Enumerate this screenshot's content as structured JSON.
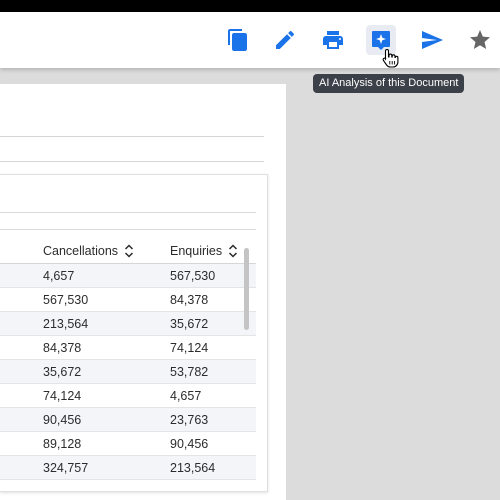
{
  "toolbar": {
    "buttons": [
      {
        "name": "copy-button",
        "icon": "copy-icon"
      },
      {
        "name": "edit-button",
        "icon": "pencil-icon"
      },
      {
        "name": "print-button",
        "icon": "printer-icon"
      },
      {
        "name": "ai-analysis-button",
        "icon": "sparkle-icon"
      },
      {
        "name": "send-button",
        "icon": "send-icon"
      },
      {
        "name": "favorite-button",
        "icon": "star-icon"
      }
    ],
    "accent_color": "#1a73e8",
    "star_color": "#666666"
  },
  "tooltip": {
    "text": "AI Analysis of this Document"
  },
  "table": {
    "columns": [
      "Cancellations",
      "Enquiries"
    ],
    "rows": [
      [
        "4,657",
        "567,530"
      ],
      [
        "567,530",
        "84,378"
      ],
      [
        "213,564",
        "35,672"
      ],
      [
        "84,378",
        "74,124"
      ],
      [
        "35,672",
        "53,782"
      ],
      [
        "74,124",
        "4,657"
      ],
      [
        "90,456",
        "23,763"
      ],
      [
        "89,128",
        "90,456"
      ],
      [
        "324,757",
        "213,564"
      ]
    ]
  }
}
